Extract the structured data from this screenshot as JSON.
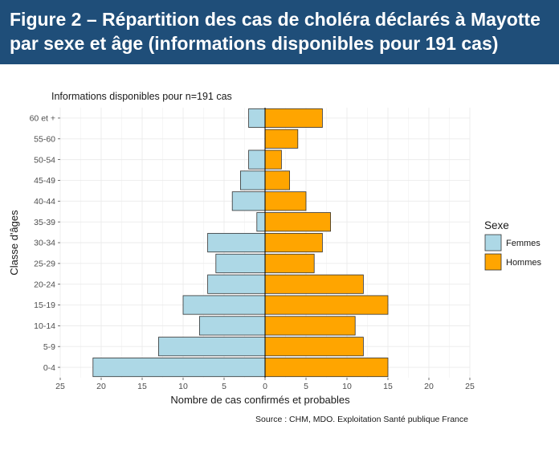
{
  "figure": {
    "title": "Figure 2 – Répartition des cas de choléra déclarés à Mayotte par sexe et âge (informations disponibles pour 191 cas)",
    "banner_color": "#1f4e79"
  },
  "chart_data": {
    "type": "bar",
    "orientation": "horizontal-pyramid",
    "subtitle": "Informations disponibles pour n=191 cas",
    "xlabel": "Nombre de cas confirmés et probables",
    "ylabel": "Classe d'âges",
    "caption": "Source : CHM, MDO. Exploitation Santé publique France",
    "categories": [
      "0-4",
      "5-9",
      "10-14",
      "15-19",
      "20-24",
      "25-29",
      "30-34",
      "35-39",
      "40-44",
      "45-49",
      "50-54",
      "55-60",
      "60 et +"
    ],
    "series": [
      {
        "name": "Femmes",
        "color": "#add8e6",
        "values": [
          21,
          13,
          8,
          10,
          7,
          6,
          7,
          1,
          4,
          3,
          2,
          0,
          2
        ]
      },
      {
        "name": "Hommes",
        "color": "#ffa500",
        "values": [
          15,
          12,
          11,
          15,
          12,
          6,
          7,
          8,
          5,
          3,
          2,
          4,
          7
        ]
      }
    ],
    "xlim": [
      -25,
      25
    ],
    "xticks": [
      -25,
      -20,
      -15,
      -10,
      -5,
      0,
      5,
      10,
      15,
      20,
      25
    ],
    "xtick_labels": [
      "25",
      "20",
      "15",
      "10",
      "5",
      "0",
      "5",
      "10",
      "15",
      "20",
      "25"
    ],
    "legend_title": "Sexe",
    "legend_position": "right",
    "grid": true
  }
}
